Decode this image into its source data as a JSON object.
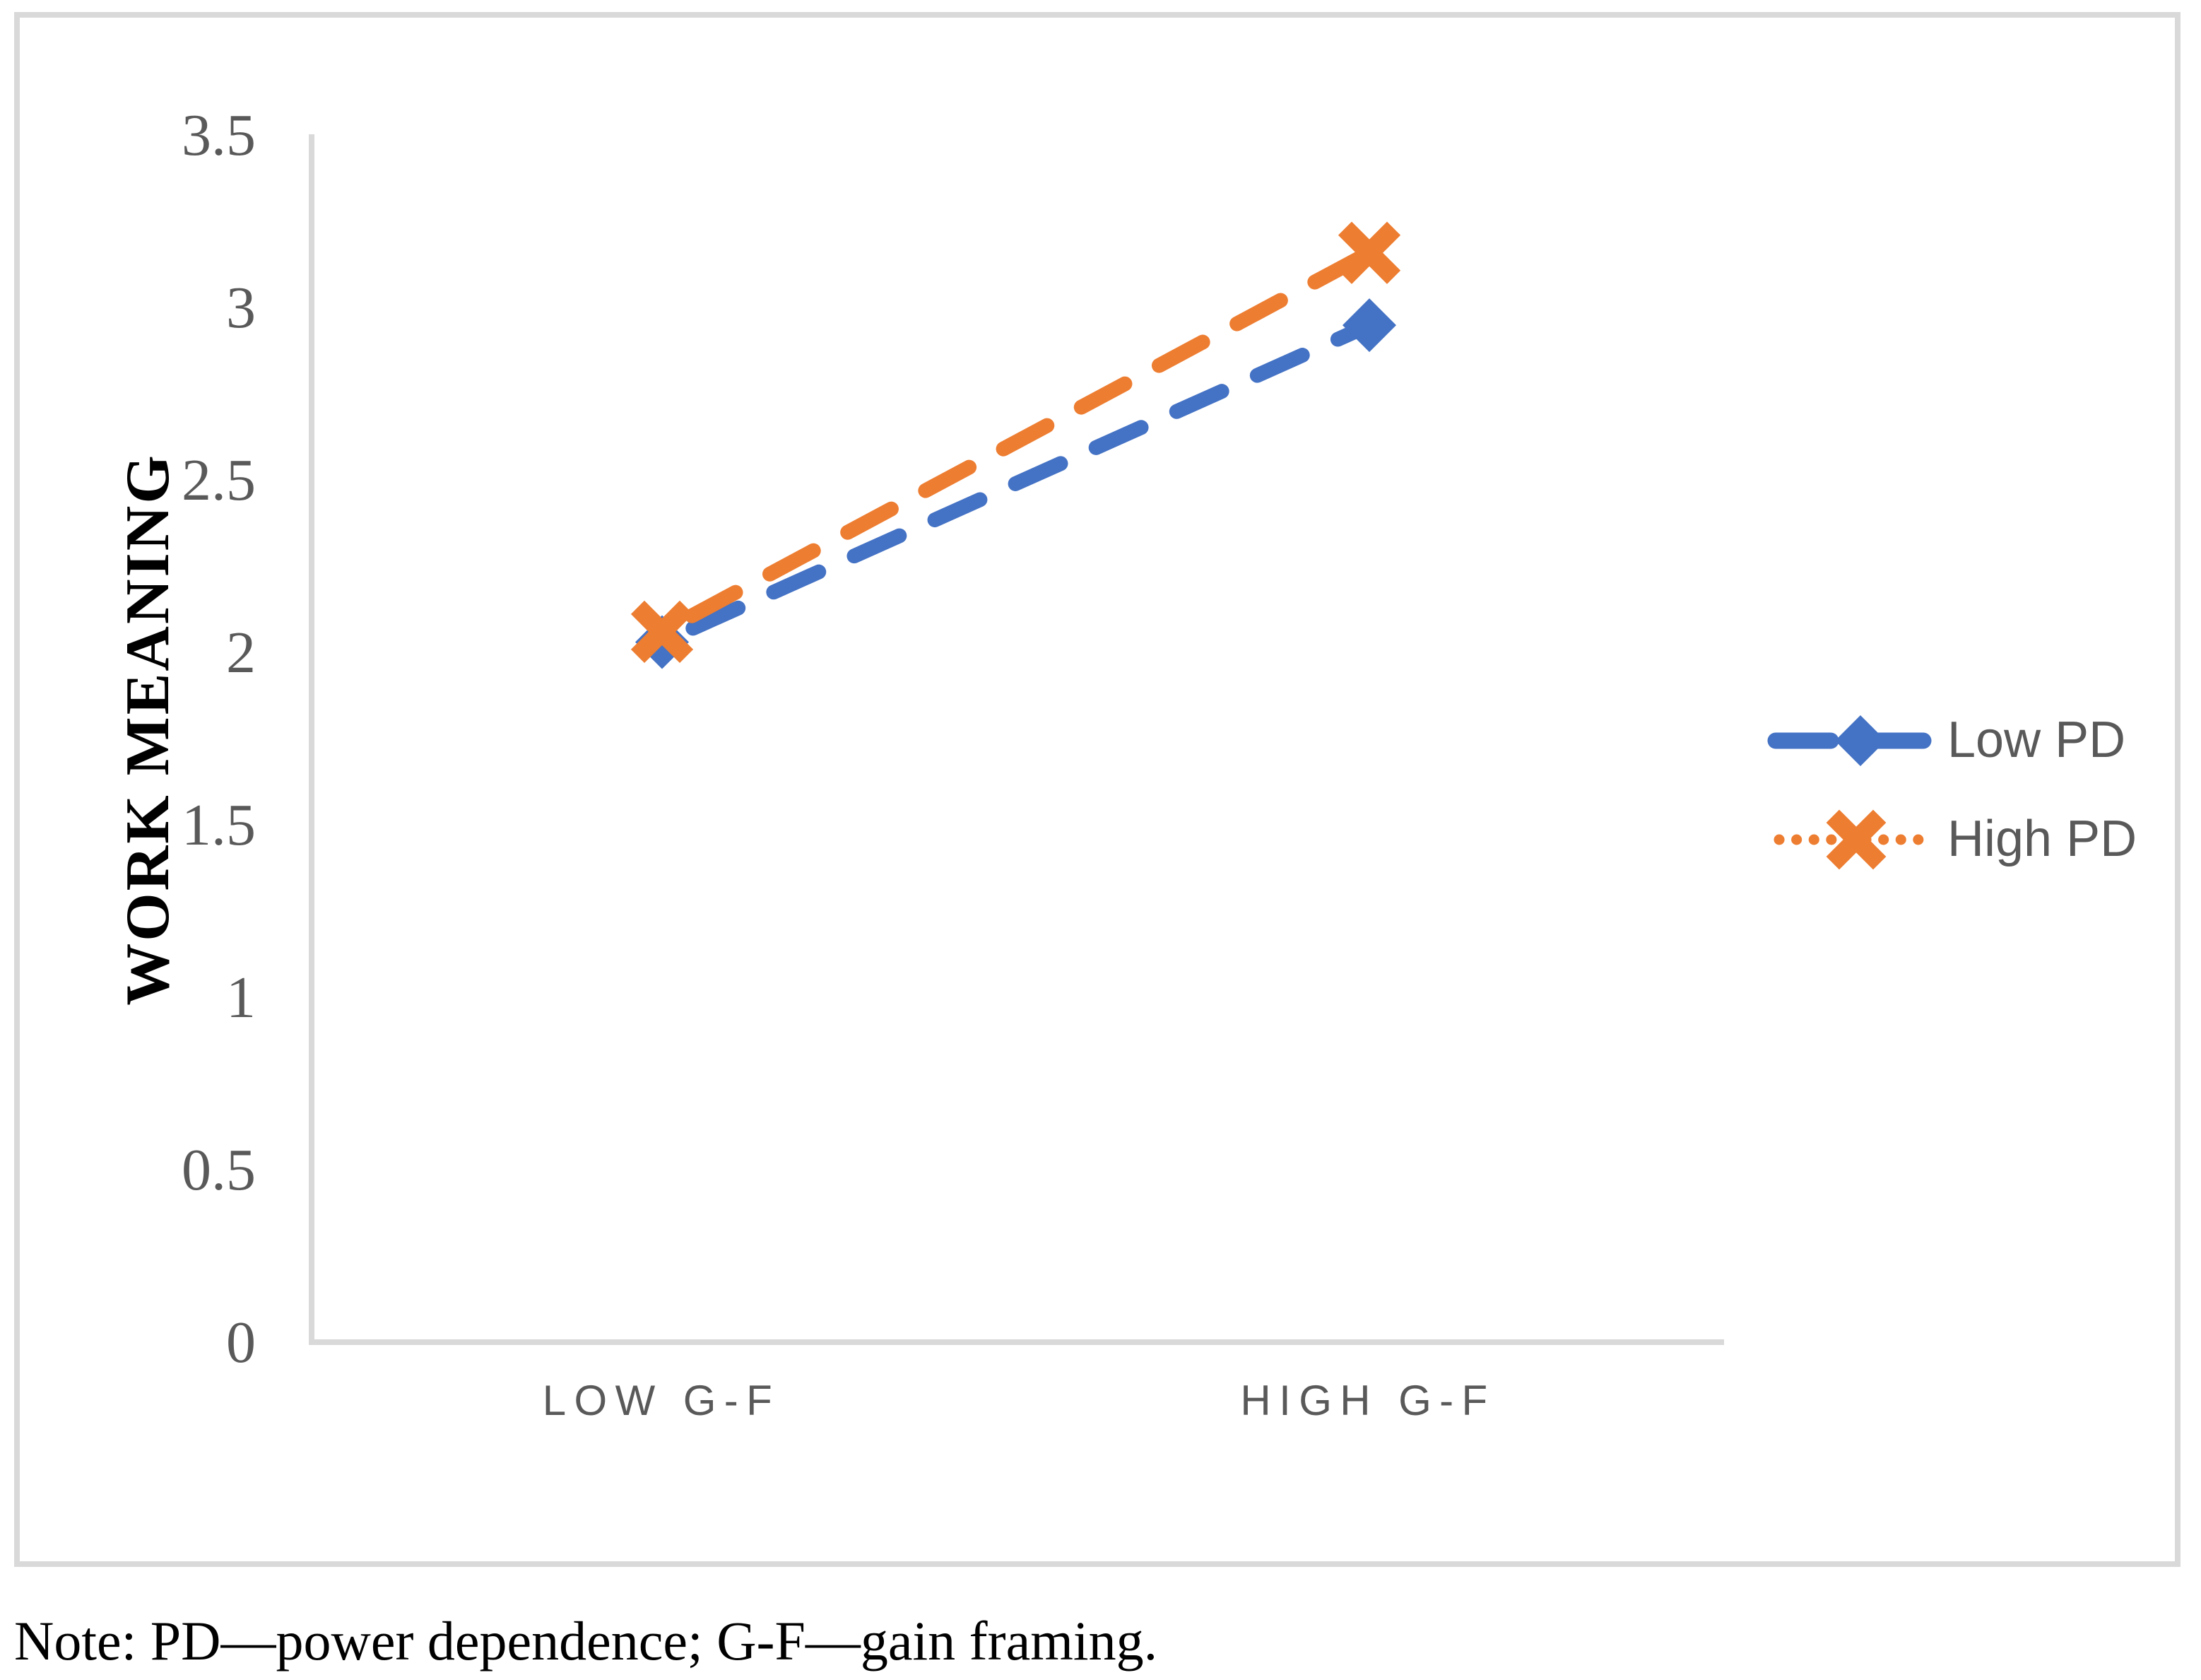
{
  "chart_data": {
    "type": "line",
    "title": "",
    "categories": [
      "LOW G-F",
      "HIGH G-F"
    ],
    "series": [
      {
        "name": "Low PD",
        "values": [
          2.03,
          2.95
        ],
        "color": "#4472C4",
        "marker": "diamond",
        "line_dash": "long-dash",
        "legend_dash": "long-dash"
      },
      {
        "name": "High PD",
        "values": [
          2.06,
          3.16
        ],
        "color": "#ED7D31",
        "marker": "x",
        "line_dash": "long-dash",
        "legend_dash": "dotted"
      }
    ],
    "xlabel": "",
    "ylabel": "WORK MEANING",
    "ylim": [
      0,
      3.5
    ],
    "ytick_step": 0.5,
    "y_tick_labels": [
      "3.5",
      "3",
      "2.5",
      "2",
      "1.5",
      "1",
      "0.5",
      "0"
    ],
    "legend_position": "right",
    "grid": false,
    "axis_color": "#D9D9D9",
    "frame_color": "#D9D9D9",
    "tick_text_color": "#595959",
    "category_text_color": "#595959",
    "legend_text_color": "#595959"
  },
  "note": "Note: PD—power dependence; G-F—gain framing."
}
